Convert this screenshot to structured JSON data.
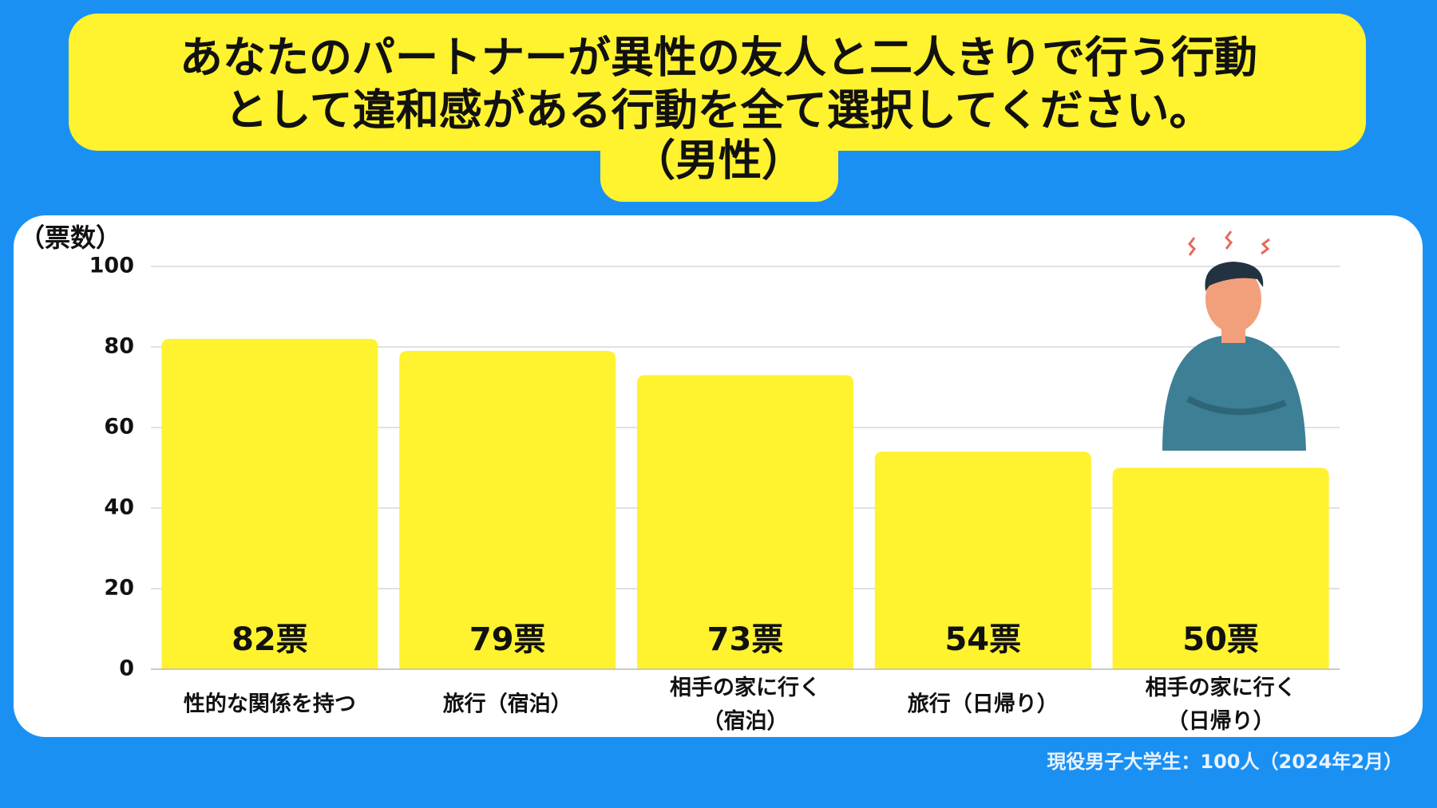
{
  "chart_data": {
    "type": "bar",
    "title": [
      "あなたのパートナーが異性の友人と二人きりで行う行動",
      "として違和感がある行動を全て選択してください。",
      "（男性）"
    ],
    "y_label": "（票数）",
    "categories": [
      "性的な関係を持つ",
      "旅行（宿泊）",
      "相手の家に行く\n（宿泊）",
      "旅行（日帰り）",
      "相手の家に行く\n（日帰り）"
    ],
    "values": [
      82,
      79,
      73,
      54,
      50
    ],
    "value_labels": [
      "82票",
      "79票",
      "73票",
      "54票",
      "50票"
    ],
    "color": "#fff22e",
    "ylim": [
      0,
      100
    ],
    "yticks": [
      0,
      20,
      40,
      60,
      80,
      100
    ],
    "grid": true,
    "note": "現役男子大学生：100人（2024年2月）"
  }
}
